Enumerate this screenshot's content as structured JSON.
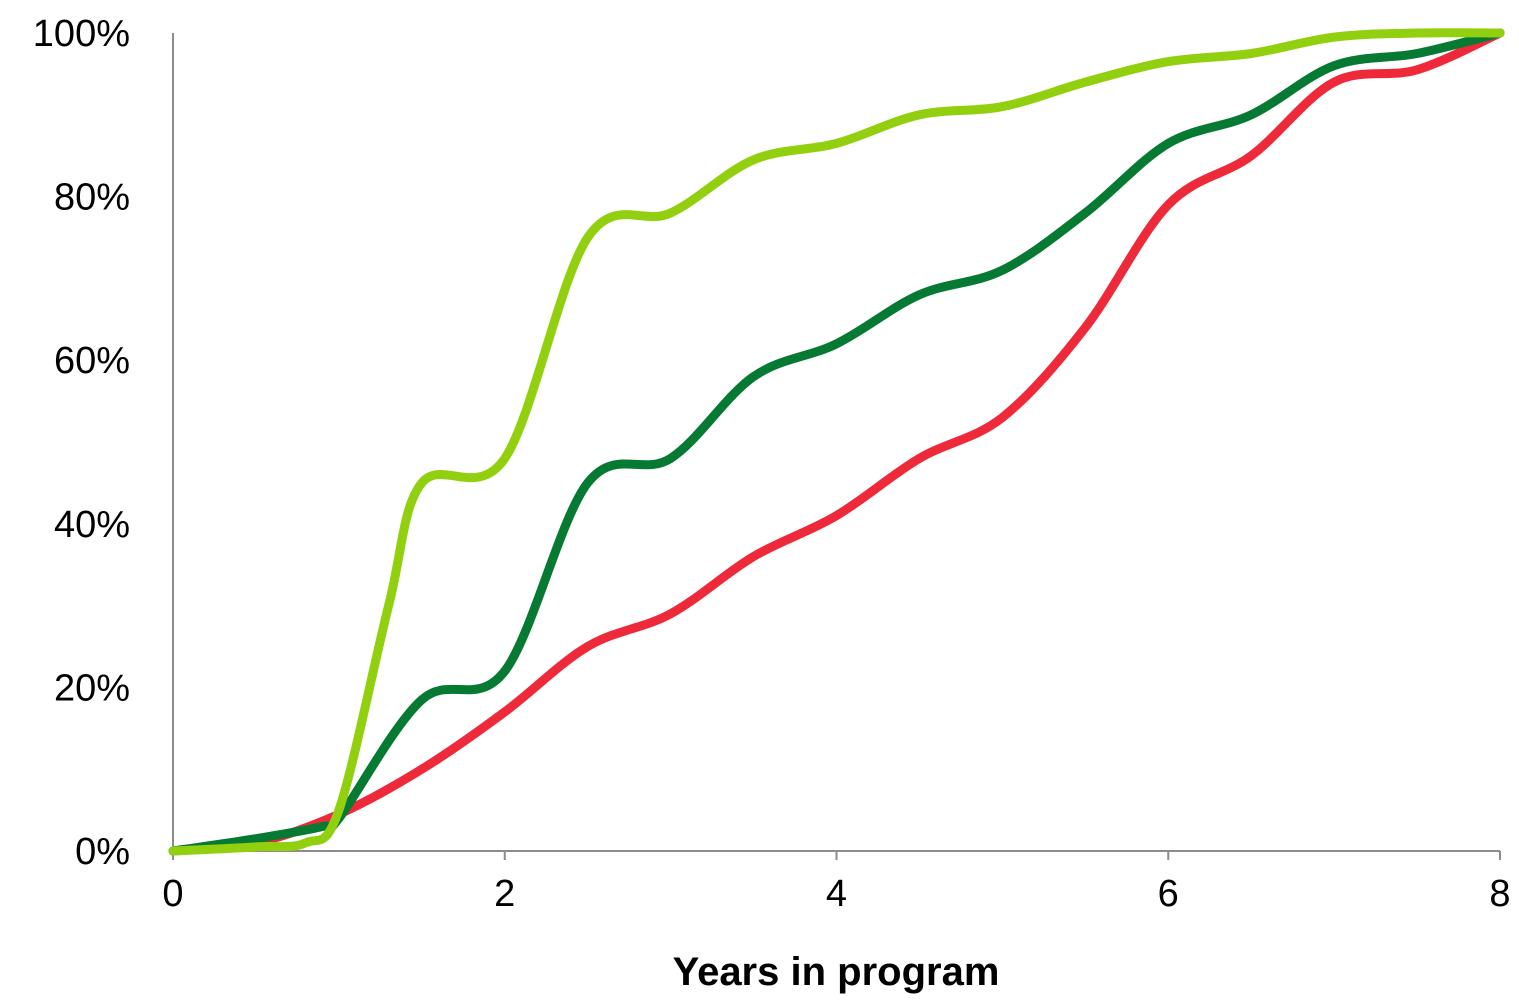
{
  "chart_data": {
    "type": "line",
    "title": "",
    "xlabel": "Years in program",
    "ylabel": "",
    "xlim": [
      0,
      8
    ],
    "ylim": [
      0,
      100
    ],
    "x_ticks": [
      "0",
      "2",
      "4",
      "6",
      "8"
    ],
    "y_ticks": [
      "0%",
      "20%",
      "40%",
      "60%",
      "80%",
      "100%"
    ],
    "grid": false,
    "legend": "none",
    "series": [
      {
        "color": "#ee2a3a",
        "x": [
          0,
          0.5,
          1,
          1.5,
          2,
          2.5,
          3,
          3.5,
          4,
          4.5,
          5,
          5.5,
          6,
          6.5,
          7,
          7.5,
          8
        ],
        "y": [
          0,
          1,
          4.5,
          10,
          17,
          25,
          29,
          36,
          41,
          48,
          53,
          64,
          79,
          85,
          94,
          95.5,
          100
        ]
      },
      {
        "color": "#067a32",
        "x": [
          0,
          0.5,
          0.9,
          1,
          1.5,
          2,
          2.5,
          3,
          3.5,
          4,
          4.5,
          5,
          5.5,
          6,
          6.5,
          7,
          7.5,
          8
        ],
        "y": [
          0,
          1.5,
          3,
          4,
          18.5,
          22,
          45,
          48,
          58,
          62,
          68,
          71,
          78,
          86.5,
          90,
          96,
          97.5,
          100
        ]
      },
      {
        "color": "#92d00f",
        "x": [
          0,
          0.5,
          0.8,
          1,
          1.3,
          1.5,
          2,
          2.5,
          3,
          3.5,
          4,
          4.5,
          5,
          5.5,
          6,
          6.5,
          7,
          7.5,
          8
        ],
        "y": [
          0,
          0.5,
          1,
          5,
          30,
          45,
          48,
          75,
          78,
          84.5,
          86.5,
          90,
          91,
          94,
          96.5,
          97.5,
          99.5,
          100,
          100
        ]
      }
    ]
  }
}
